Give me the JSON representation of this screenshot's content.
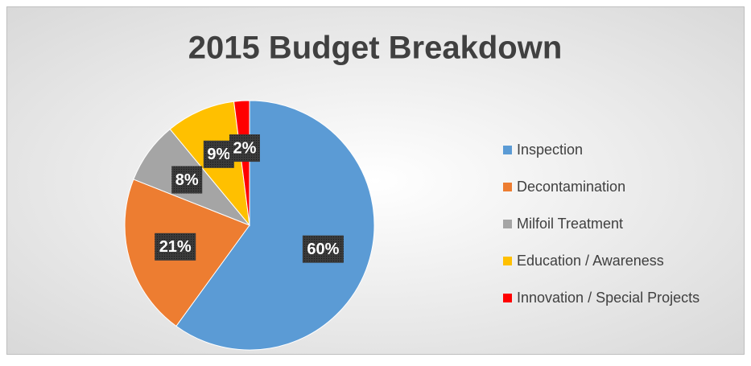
{
  "chart_data": {
    "type": "pie",
    "title": "2015 Budget Breakdown",
    "categories": [
      "Inspection",
      "Decontamination",
      "Milfoil Treatment",
      "Education / Awareness",
      "Innovation / Special Projects"
    ],
    "values": [
      60,
      21,
      8,
      9,
      2
    ],
    "value_labels": [
      "60%",
      "21%",
      "8%",
      "9%",
      "2%"
    ],
    "colors": [
      "#5b9bd5",
      "#ed7d31",
      "#a5a5a5",
      "#ffc000",
      "#ff0000"
    ],
    "legend": "right"
  }
}
